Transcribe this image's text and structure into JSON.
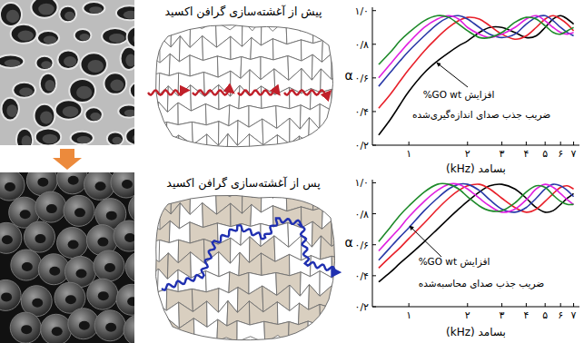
{
  "panels": {
    "before_title": "پیش از آغشته‌سازی گرافن اکسید",
    "after_title": "پس از آغشته‌سازی گرافن اکسید"
  },
  "chart_data": [
    {
      "type": "line",
      "title": "ضریب جذب صدای اندازه‌گیری‌شده",
      "annotation": "افزایش GO wt%",
      "x_label": "بسامد (kHz)",
      "y_label": "α",
      "log": "x",
      "grid": false,
      "x": [
        0.7,
        0.8,
        0.9,
        1.0,
        1.2,
        1.4,
        1.6,
        1.8,
        2.0,
        2.3,
        2.6,
        3.0,
        3.5,
        4.0,
        4.5,
        5.0,
        5.5,
        6.0,
        6.5,
        7.0
      ],
      "xlim": [
        0.65,
        7.5
      ],
      "xticks": [
        {
          "value": 1,
          "label": "۱"
        },
        {
          "value": 2,
          "label": "۲"
        },
        {
          "value": 3,
          "label": "۳"
        },
        {
          "value": 4,
          "label": "۴"
        },
        {
          "value": 5,
          "label": "۵"
        },
        {
          "value": 6,
          "label": "۶"
        },
        {
          "value": 7,
          "label": "۷"
        }
      ],
      "ylim": [
        0.2,
        1.02
      ],
      "yticks": [
        {
          "value": 0.2,
          "label": "۰/۲"
        },
        {
          "value": 0.4,
          "label": "۰/۴"
        },
        {
          "value": 0.6,
          "label": "۰/۶"
        },
        {
          "value": 0.8,
          "label": "۰/۸"
        },
        {
          "value": 1.0,
          "label": "۱/۰"
        }
      ],
      "series": [
        {
          "color": "#000000",
          "values": [
            0.26,
            0.35,
            0.44,
            0.52,
            0.63,
            0.7,
            0.75,
            0.79,
            0.82,
            0.87,
            0.9,
            0.9,
            0.87,
            0.84,
            0.85,
            0.9,
            0.95,
            0.97,
            0.95,
            0.92
          ]
        },
        {
          "color": "#e8202a",
          "values": [
            0.42,
            0.5,
            0.58,
            0.65,
            0.76,
            0.84,
            0.9,
            0.94,
            0.96,
            0.95,
            0.91,
            0.86,
            0.83,
            0.85,
            0.9,
            0.95,
            0.97,
            0.95,
            0.92,
            0.88
          ]
        },
        {
          "color": "#2a3aa8",
          "values": [
            0.55,
            0.63,
            0.7,
            0.76,
            0.85,
            0.92,
            0.96,
            0.97,
            0.95,
            0.9,
            0.86,
            0.84,
            0.86,
            0.92,
            0.96,
            0.97,
            0.94,
            0.9,
            0.87,
            0.85
          ]
        },
        {
          "color": "#e020e0",
          "values": [
            0.6,
            0.68,
            0.75,
            0.81,
            0.9,
            0.95,
            0.97,
            0.95,
            0.9,
            0.86,
            0.84,
            0.86,
            0.9,
            0.95,
            0.97,
            0.94,
            0.9,
            0.87,
            0.86,
            0.87
          ]
        },
        {
          "color": "#1e8a2a",
          "values": [
            0.68,
            0.75,
            0.82,
            0.87,
            0.94,
            0.97,
            0.96,
            0.92,
            0.88,
            0.84,
            0.84,
            0.87,
            0.93,
            0.96,
            0.95,
            0.91,
            0.87,
            0.86,
            0.88,
            0.9
          ]
        }
      ]
    },
    {
      "type": "line",
      "title": "ضریب جذب صدای محاسبه‌شده",
      "annotation": "افزایش GO wt%",
      "x_label": "بسامد (kHz)",
      "y_label": "α",
      "log": "x",
      "grid": false,
      "x": [
        0.7,
        0.8,
        0.9,
        1.0,
        1.2,
        1.4,
        1.6,
        1.8,
        2.0,
        2.3,
        2.6,
        3.0,
        3.5,
        4.0,
        4.5,
        5.0,
        5.5,
        6.0,
        6.5,
        7.0
      ],
      "xlim": [
        0.65,
        7.5
      ],
      "xticks": [
        {
          "value": 1,
          "label": "۱"
        },
        {
          "value": 2,
          "label": "۲"
        },
        {
          "value": 3,
          "label": "۳"
        },
        {
          "value": 4,
          "label": "۴"
        },
        {
          "value": 5,
          "label": "۵"
        },
        {
          "value": 6,
          "label": "۶"
        },
        {
          "value": 7,
          "label": "۷"
        }
      ],
      "ylim": [
        0.2,
        1.02
      ],
      "yticks": [
        {
          "value": 0.2,
          "label": "۰/۲"
        },
        {
          "value": 0.4,
          "label": "۰/۴"
        },
        {
          "value": 0.6,
          "label": "۰/۶"
        },
        {
          "value": 0.8,
          "label": "۰/۸"
        },
        {
          "value": 1.0,
          "label": "۱/۰"
        }
      ],
      "series": [
        {
          "color": "#000000",
          "values": [
            0.36,
            0.42,
            0.48,
            0.53,
            0.62,
            0.7,
            0.77,
            0.83,
            0.88,
            0.94,
            0.98,
            0.99,
            0.96,
            0.9,
            0.84,
            0.81,
            0.82,
            0.86,
            0.9,
            0.93
          ]
        },
        {
          "color": "#e8202a",
          "values": [
            0.45,
            0.52,
            0.58,
            0.64,
            0.74,
            0.83,
            0.9,
            0.95,
            0.98,
            0.99,
            0.96,
            0.9,
            0.84,
            0.81,
            0.83,
            0.88,
            0.93,
            0.97,
            0.98,
            0.96
          ]
        },
        {
          "color": "#2a3aa8",
          "values": [
            0.5,
            0.58,
            0.65,
            0.71,
            0.82,
            0.9,
            0.96,
            0.99,
            0.99,
            0.95,
            0.89,
            0.83,
            0.81,
            0.84,
            0.9,
            0.96,
            0.99,
            0.98,
            0.95,
            0.91
          ]
        },
        {
          "color": "#e020e0",
          "values": [
            0.56,
            0.64,
            0.71,
            0.78,
            0.88,
            0.95,
            0.99,
            0.99,
            0.96,
            0.9,
            0.85,
            0.81,
            0.83,
            0.89,
            0.96,
            0.99,
            0.97,
            0.93,
            0.89,
            0.86
          ]
        },
        {
          "color": "#1e8a2a",
          "values": [
            0.62,
            0.71,
            0.79,
            0.85,
            0.94,
            0.99,
            0.99,
            0.96,
            0.91,
            0.85,
            0.82,
            0.82,
            0.87,
            0.94,
            0.98,
            0.97,
            0.92,
            0.88,
            0.86,
            0.86
          ]
        }
      ]
    }
  ]
}
